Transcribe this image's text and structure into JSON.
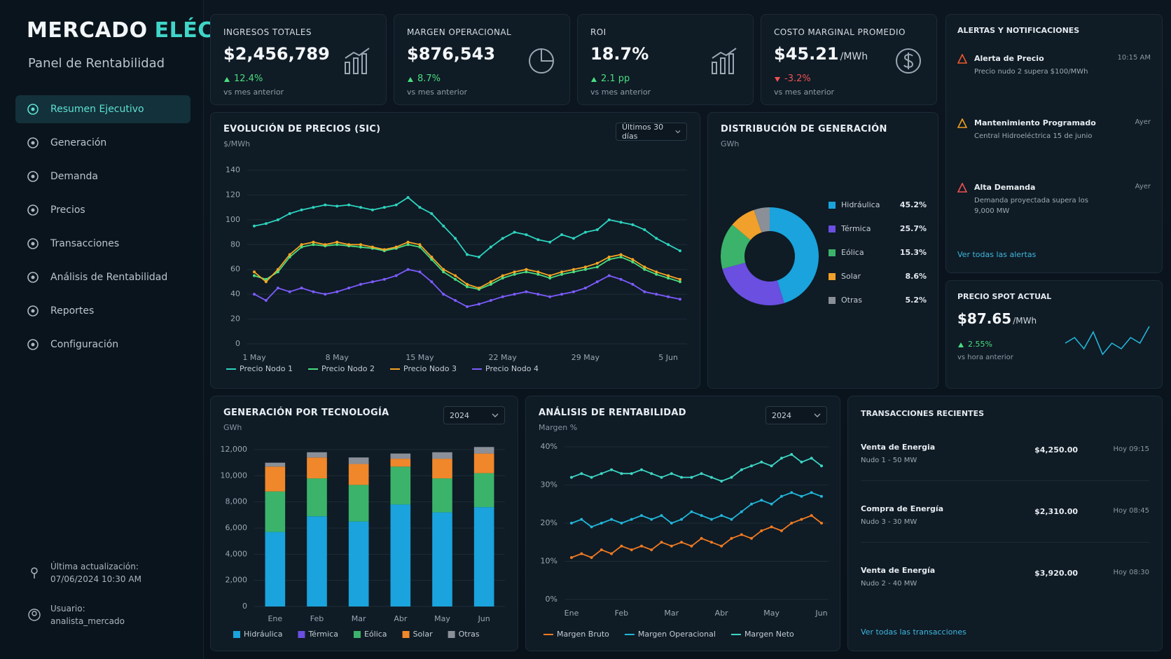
{
  "header": {
    "title_main": "MERCADO",
    "title_accent": "ELÉCTRICO",
    "subtitle": "Panel de Rentabilidad"
  },
  "sidebar": {
    "nav": [
      "Resumen Ejecutivo",
      "Generación",
      "Demanda",
      "Precios",
      "Transacciones",
      "Análisis de Rentabilidad",
      "Reportes",
      "Configuración"
    ],
    "active": 0,
    "last_update_label": "Última actualización:",
    "last_update": "07/06/2024 10:30 AM",
    "user_label": "Usuario:",
    "user": "analista_mercado"
  },
  "kpis": [
    {
      "title": "INGRESOS TOTALES",
      "value": "$2,456,789",
      "change": "12.4%",
      "direction": "up",
      "note": "vs mes anterior"
    },
    {
      "title": "MARGEN OPERACIONAL",
      "value": "$876,543",
      "change": "8.7%",
      "direction": "up",
      "note": "vs mes anterior"
    },
    {
      "title": "ROI",
      "value": "18.7%",
      "change": "2.1 pp",
      "direction": "up",
      "note": "vs mes anterior"
    },
    {
      "title": "COSTO MARGINAL PROMEDIO",
      "value": "$45.21",
      "unit": "/MWh",
      "change": "-3.2%",
      "direction": "down",
      "note": "vs mes anterior"
    }
  ],
  "alerts": {
    "title": "ALERTAS Y NOTIFICACIONES",
    "items": [
      {
        "title": "Alerta de Precio",
        "detail": "Precio nudo 2 supera $100/MWh",
        "time": "10:15 AM"
      },
      {
        "title": "Mantenimiento Programado",
        "detail": "Central Hidroeléctrica 15 de junio",
        "time": "Ayer"
      },
      {
        "title": "Alta Demanda",
        "detail": "Demanda proyectada supera los 9,000 MW",
        "time": "Ayer"
      }
    ],
    "link": "Ver todas las alertas"
  },
  "spot": {
    "title": "PRECIO SPOT ACTUAL",
    "value": "$87.65",
    "unit": "/MWh",
    "change": "2.55%",
    "note": "vs hora anterior",
    "sparkline": [
      5,
      6,
      4,
      7,
      3,
      5,
      4,
      6,
      5,
      8
    ]
  },
  "transactions": {
    "title": "TRANSACCIONES RECIENTES",
    "rows": [
      {
        "title": "Venta de Energia",
        "detail": "Nudo 1 - 50 MW",
        "amount": "$4,250.00",
        "time": "Hoy 09:15"
      },
      {
        "title": "Compra de Energía",
        "detail": "Nudo 3 - 30 MW",
        "amount": "$2,310.00",
        "time": "Hoy 08:45"
      },
      {
        "title": "Venta de Energía",
        "detail": "Nudo 2 - 40 MW",
        "amount": "$3,920.00",
        "time": "Hoy 08:30"
      }
    ],
    "link": "Ver todas las transacciones"
  },
  "chart_data": [
    {
      "type": "line",
      "title": "EVOLUCIÓN DE PRECIOS (SIC)",
      "y_label": "$/MWh",
      "dropdown": "Últimos 30 días",
      "categories": [
        "1 May",
        null,
        null,
        null,
        null,
        null,
        null,
        "8 May",
        null,
        null,
        null,
        null,
        null,
        null,
        "15 May",
        null,
        null,
        null,
        null,
        null,
        null,
        "22 May",
        null,
        null,
        null,
        null,
        null,
        null,
        "29 May",
        null,
        null,
        null,
        null,
        null,
        null,
        "5 Jun",
        null
      ],
      "series": [
        {
          "name": "Precio Nodo 1",
          "color": "#2dd4bf",
          "values": [
            95,
            97,
            100,
            105,
            108,
            110,
            112,
            111,
            112,
            110,
            108,
            110,
            112,
            118,
            110,
            105,
            95,
            85,
            72,
            70,
            78,
            85,
            90,
            88,
            84,
            82,
            88,
            85,
            90,
            92,
            100,
            98,
            96,
            92,
            85,
            80,
            75
          ]
        },
        {
          "name": "Precio Nodo 2",
          "color": "#4ade80",
          "values": [
            55,
            52,
            58,
            70,
            78,
            80,
            79,
            80,
            79,
            78,
            77,
            75,
            77,
            80,
            78,
            68,
            58,
            52,
            46,
            44,
            48,
            53,
            56,
            58,
            56,
            53,
            56,
            58,
            60,
            62,
            68,
            70,
            66,
            60,
            56,
            53,
            50
          ]
        },
        {
          "name": "Precio Nodo 3",
          "color": "#f5a524",
          "values": [
            58,
            50,
            60,
            72,
            80,
            82,
            80,
            82,
            80,
            80,
            78,
            76,
            78,
            82,
            80,
            70,
            60,
            55,
            48,
            45,
            50,
            55,
            58,
            60,
            58,
            55,
            58,
            60,
            62,
            65,
            70,
            72,
            68,
            62,
            58,
            55,
            52
          ]
        },
        {
          "name": "Precio Nodo 4",
          "color": "#7c5cff",
          "values": [
            40,
            35,
            45,
            42,
            45,
            42,
            40,
            42,
            45,
            48,
            50,
            52,
            55,
            60,
            58,
            50,
            40,
            35,
            30,
            32,
            35,
            38,
            40,
            42,
            40,
            38,
            40,
            42,
            45,
            50,
            55,
            52,
            48,
            42,
            40,
            38,
            36
          ]
        }
      ],
      "ylim": [
        0,
        140
      ],
      "yticks": [
        0,
        20,
        40,
        60,
        80,
        100,
        120,
        140
      ],
      "grid": true
    },
    {
      "type": "pie",
      "donut": true,
      "title": "DISTRIBUCIÓN DE GENERACIÓN",
      "subtitle": "GWh",
      "categories": [
        "Hidráulica",
        "Térmica",
        "Eólica",
        "Solar",
        "Otras"
      ],
      "values": [
        45.2,
        25.7,
        15.3,
        8.6,
        5.2
      ],
      "value_labels": [
        "45.2%",
        "25.7%",
        "15.3%",
        "8.6%",
        "5.2%"
      ],
      "colors": [
        "#1aa3dc",
        "#6a4fe0",
        "#3bb36a",
        "#f0a02b",
        "#8a8f98"
      ]
    },
    {
      "type": "bar",
      "stacked": true,
      "title": "GENERACIÓN POR TECNOLOGÍA",
      "y_label": "GWh",
      "dropdown": "2024",
      "categories": [
        "Ene",
        "Feb",
        "Mar",
        "Abr",
        "May",
        "Jun"
      ],
      "series": [
        {
          "name": "Hidráulica",
          "color": "#1aa3dc",
          "values": [
            5700,
            6900,
            6500,
            7800,
            7200,
            7600
          ]
        },
        {
          "name": "Térmica",
          "color": "#6a4fe0",
          "values": [
            0,
            0,
            0,
            0,
            0,
            0
          ]
        },
        {
          "name": "Eólica",
          "color": "#3bb36a",
          "values": [
            3100,
            2900,
            2800,
            2900,
            2600,
            2600
          ]
        },
        {
          "name": "Solar",
          "color": "#f0872b",
          "values": [
            1900,
            1600,
            1600,
            600,
            1500,
            1500
          ]
        },
        {
          "name": "Otras",
          "color": "#8a8f98",
          "values": [
            300,
            400,
            500,
            400,
            500,
            500
          ]
        }
      ],
      "ylim": [
        0,
        12000
      ],
      "yticks": [
        0,
        {
          "value": 2000,
          "label": "2,000"
        },
        {
          "value": 4000,
          "label": "4,000"
        },
        {
          "value": 6000,
          "label": "6,000"
        },
        {
          "value": 8000,
          "label": "8,000"
        },
        {
          "value": 10000,
          "label": "10,000"
        },
        {
          "value": 12000,
          "label": "12,000"
        }
      ],
      "grid": true
    },
    {
      "type": "line",
      "title": "ANÁLISIS DE RENTABILIDAD",
      "y_label": "Margen %",
      "dropdown": "2024",
      "categories": [
        "Ene",
        null,
        null,
        null,
        null,
        "Feb",
        null,
        null,
        null,
        null,
        "Mar",
        null,
        null,
        null,
        null,
        "Abr",
        null,
        null,
        null,
        null,
        "May",
        null,
        null,
        null,
        null,
        "Jun"
      ],
      "series": [
        {
          "name": "Margen Bruto",
          "color": "#f07a22",
          "values": [
            11,
            12,
            11,
            13,
            12,
            14,
            13,
            14,
            13,
            15,
            14,
            15,
            14,
            16,
            15,
            14,
            16,
            17,
            16,
            18,
            19,
            18,
            20,
            21,
            22,
            20
          ]
        },
        {
          "name": "Margen Operacional",
          "color": "#22b5d8",
          "values": [
            20,
            21,
            19,
            20,
            21,
            20,
            21,
            22,
            21,
            22,
            20,
            21,
            23,
            22,
            21,
            22,
            21,
            23,
            25,
            26,
            25,
            27,
            28,
            27,
            28,
            27
          ]
        },
        {
          "name": "Margen Neto",
          "color": "#3dd6c4",
          "values": [
            32,
            33,
            32,
            33,
            34,
            33,
            33,
            34,
            33,
            32,
            33,
            32,
            32,
            33,
            32,
            31,
            32,
            34,
            35,
            36,
            35,
            37,
            38,
            36,
            37,
            35
          ]
        }
      ],
      "ylim": [
        0,
        40
      ],
      "yticks": [
        {
          "value": 0,
          "label": "0%"
        },
        {
          "value": 10,
          "label": "10%"
        },
        {
          "value": 20,
          "label": "20%"
        },
        {
          "value": 30,
          "label": "30%"
        },
        {
          "value": 40,
          "label": "40%"
        }
      ],
      "grid": true
    }
  ]
}
